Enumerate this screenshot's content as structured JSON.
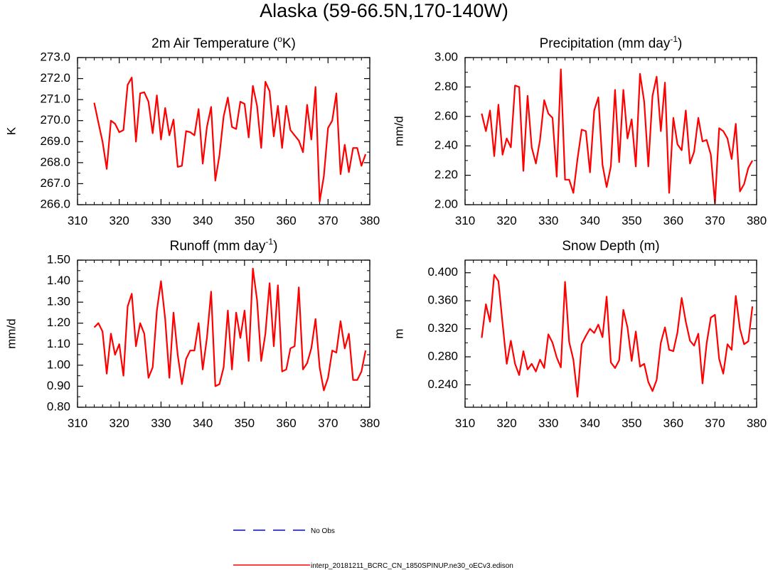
{
  "figure": {
    "title": "Alaska (59-66.5N,170-140W)"
  },
  "legend": {
    "items": [
      {
        "label": "No Obs",
        "color": "#0000ff",
        "style": "dashed"
      },
      {
        "label": "interp_20181211_BCRC_CN_1850SPINUP.ne30_oECv3.edison",
        "color": "#ff0000",
        "style": "solid"
      }
    ]
  },
  "chart_data": [
    {
      "type": "line",
      "title_main": "2m Air Temperature (",
      "title_sup": "o",
      "title_tail": "K)",
      "ylabel": "K",
      "xlim": [
        310,
        380
      ],
      "ylim": [
        266.0,
        273.0
      ],
      "xticks": [
        310,
        320,
        330,
        340,
        350,
        360,
        370,
        380
      ],
      "yticks": [
        "266.0",
        "267.0",
        "268.0",
        "269.0",
        "270.0",
        "271.0",
        "272.0",
        "273.0"
      ],
      "series": [
        {
          "color": "#ff0000",
          "x": [
            314,
            315,
            316,
            317,
            318,
            319,
            320,
            321,
            322,
            323,
            324,
            325,
            326,
            327,
            328,
            329,
            330,
            331,
            332,
            333,
            334,
            335,
            336,
            337,
            338,
            339,
            340,
            341,
            342,
            343,
            344,
            345,
            346,
            347,
            348,
            349,
            350,
            351,
            352,
            353,
            354,
            355,
            356,
            357,
            358,
            359,
            360,
            361,
            362,
            363,
            364,
            365,
            366,
            367,
            368,
            369,
            370,
            371,
            372,
            373,
            374,
            375,
            376,
            377,
            378,
            379
          ],
          "values": [
            270.85,
            269.9,
            269.0,
            267.7,
            270.0,
            269.85,
            269.45,
            269.55,
            271.7,
            272.05,
            269.0,
            271.3,
            271.35,
            270.9,
            269.4,
            271.2,
            269.1,
            270.6,
            269.3,
            270.05,
            267.8,
            267.85,
            269.5,
            269.45,
            269.3,
            270.55,
            267.95,
            269.7,
            270.65,
            267.15,
            268.35,
            270.2,
            271.1,
            269.7,
            269.6,
            270.9,
            270.8,
            269.2,
            271.65,
            270.7,
            268.7,
            271.85,
            271.4,
            269.25,
            270.7,
            268.7,
            270.7,
            269.55,
            269.3,
            269.05,
            268.5,
            270.75,
            269.1,
            271.6,
            266.15,
            267.35,
            269.65,
            270.0,
            271.3,
            267.45,
            268.85,
            267.55,
            268.7,
            268.7,
            267.85,
            268.4
          ]
        }
      ]
    },
    {
      "type": "line",
      "title_main": "Precipitation (mm day",
      "title_sup": "-1",
      "title_tail": ")",
      "ylabel": "mm/d",
      "xlim": [
        310,
        380
      ],
      "ylim": [
        2.0,
        3.0
      ],
      "xticks": [
        310,
        320,
        330,
        340,
        350,
        360,
        370,
        380
      ],
      "yticks": [
        "2.00",
        "2.20",
        "2.40",
        "2.60",
        "2.80",
        "3.00"
      ],
      "series": [
        {
          "color": "#ff0000",
          "x": [
            314,
            315,
            316,
            317,
            318,
            319,
            320,
            321,
            322,
            323,
            324,
            325,
            326,
            327,
            328,
            329,
            330,
            331,
            332,
            333,
            334,
            335,
            336,
            337,
            338,
            339,
            340,
            341,
            342,
            343,
            344,
            345,
            346,
            347,
            348,
            349,
            350,
            351,
            352,
            353,
            354,
            355,
            356,
            357,
            358,
            359,
            360,
            361,
            362,
            363,
            364,
            365,
            366,
            367,
            368,
            369,
            370,
            371,
            372,
            373,
            374,
            375,
            376,
            377,
            378,
            379
          ],
          "values": [
            2.62,
            2.5,
            2.64,
            2.33,
            2.68,
            2.34,
            2.45,
            2.39,
            2.81,
            2.8,
            2.23,
            2.74,
            2.39,
            2.28,
            2.44,
            2.71,
            2.62,
            2.59,
            2.19,
            2.92,
            2.17,
            2.17,
            2.08,
            2.31,
            2.51,
            2.5,
            2.22,
            2.64,
            2.73,
            2.27,
            2.12,
            2.26,
            2.78,
            2.29,
            2.78,
            2.45,
            2.58,
            2.26,
            2.89,
            2.7,
            2.26,
            2.74,
            2.87,
            2.5,
            2.83,
            2.08,
            2.59,
            2.41,
            2.37,
            2.64,
            2.28,
            2.36,
            2.59,
            2.43,
            2.44,
            2.34,
            2.01,
            2.52,
            2.5,
            2.45,
            2.31,
            2.55,
            2.09,
            2.14,
            2.25,
            2.3
          ]
        }
      ]
    },
    {
      "type": "line",
      "title_main": "Runoff (mm day",
      "title_sup": "-1",
      "title_tail": ")",
      "ylabel": "mm/d",
      "xlim": [
        310,
        380
      ],
      "ylim": [
        0.8,
        1.5
      ],
      "xticks": [
        310,
        320,
        330,
        340,
        350,
        360,
        370,
        380
      ],
      "yticks": [
        "0.80",
        "0.90",
        "1.00",
        "1.10",
        "1.20",
        "1.30",
        "1.40",
        "1.50"
      ],
      "series": [
        {
          "color": "#ff0000",
          "x": [
            314,
            315,
            316,
            317,
            318,
            319,
            320,
            321,
            322,
            323,
            324,
            325,
            326,
            327,
            328,
            329,
            330,
            331,
            332,
            333,
            334,
            335,
            336,
            337,
            338,
            339,
            340,
            341,
            342,
            343,
            344,
            345,
            346,
            347,
            348,
            349,
            350,
            351,
            352,
            353,
            354,
            355,
            356,
            357,
            358,
            359,
            360,
            361,
            362,
            363,
            364,
            365,
            366,
            367,
            368,
            369,
            370,
            371,
            372,
            373,
            374,
            375,
            376,
            377,
            378,
            379
          ],
          "values": [
            1.18,
            1.2,
            1.16,
            0.96,
            1.15,
            1.05,
            1.1,
            0.95,
            1.28,
            1.34,
            1.09,
            1.2,
            1.15,
            0.94,
            0.99,
            1.26,
            1.4,
            1.22,
            0.94,
            1.25,
            1.05,
            0.91,
            1.03,
            1.07,
            1.07,
            1.2,
            0.98,
            1.13,
            1.35,
            0.9,
            0.91,
            0.99,
            1.26,
            0.98,
            1.25,
            1.13,
            1.26,
            1.02,
            1.46,
            1.31,
            1.02,
            1.15,
            1.39,
            1.09,
            1.38,
            0.97,
            0.98,
            1.08,
            1.09,
            1.37,
            0.98,
            1.01,
            1.08,
            1.22,
            0.99,
            0.88,
            0.94,
            1.07,
            1.06,
            1.21,
            1.08,
            1.15,
            0.93,
            0.93,
            0.97,
            1.07
          ]
        }
      ]
    },
    {
      "type": "line",
      "title_main": "Snow Depth (m)",
      "title_sup": "",
      "title_tail": "",
      "ylabel": "m",
      "xlim": [
        310,
        380
      ],
      "ylim": [
        0.208,
        0.418
      ],
      "xticks": [
        310,
        320,
        330,
        340,
        350,
        360,
        370,
        380
      ],
      "yticks": [
        "0.240",
        "0.280",
        "0.320",
        "0.360",
        "0.400"
      ],
      "series": [
        {
          "color": "#ff0000",
          "x": [
            314,
            315,
            316,
            317,
            318,
            319,
            320,
            321,
            322,
            323,
            324,
            325,
            326,
            327,
            328,
            329,
            330,
            331,
            332,
            333,
            334,
            335,
            336,
            337,
            338,
            339,
            340,
            341,
            342,
            343,
            344,
            345,
            346,
            347,
            348,
            349,
            350,
            351,
            352,
            353,
            354,
            355,
            356,
            357,
            358,
            359,
            360,
            361,
            362,
            363,
            364,
            365,
            366,
            367,
            368,
            369,
            370,
            371,
            372,
            373,
            374,
            375,
            376,
            377,
            378,
            379
          ],
          "values": [
            0.307,
            0.355,
            0.33,
            0.397,
            0.388,
            0.328,
            0.27,
            0.303,
            0.27,
            0.254,
            0.288,
            0.262,
            0.27,
            0.259,
            0.276,
            0.264,
            0.312,
            0.3,
            0.279,
            0.265,
            0.387,
            0.301,
            0.276,
            0.223,
            0.298,
            0.31,
            0.32,
            0.314,
            0.326,
            0.308,
            0.366,
            0.272,
            0.264,
            0.275,
            0.347,
            0.322,
            0.274,
            0.316,
            0.266,
            0.27,
            0.244,
            0.231,
            0.247,
            0.3,
            0.322,
            0.29,
            0.288,
            0.315,
            0.364,
            0.33,
            0.303,
            0.296,
            0.313,
            0.242,
            0.299,
            0.336,
            0.34,
            0.277,
            0.256,
            0.298,
            0.29,
            0.367,
            0.32,
            0.298,
            0.302,
            0.352
          ]
        }
      ]
    }
  ]
}
